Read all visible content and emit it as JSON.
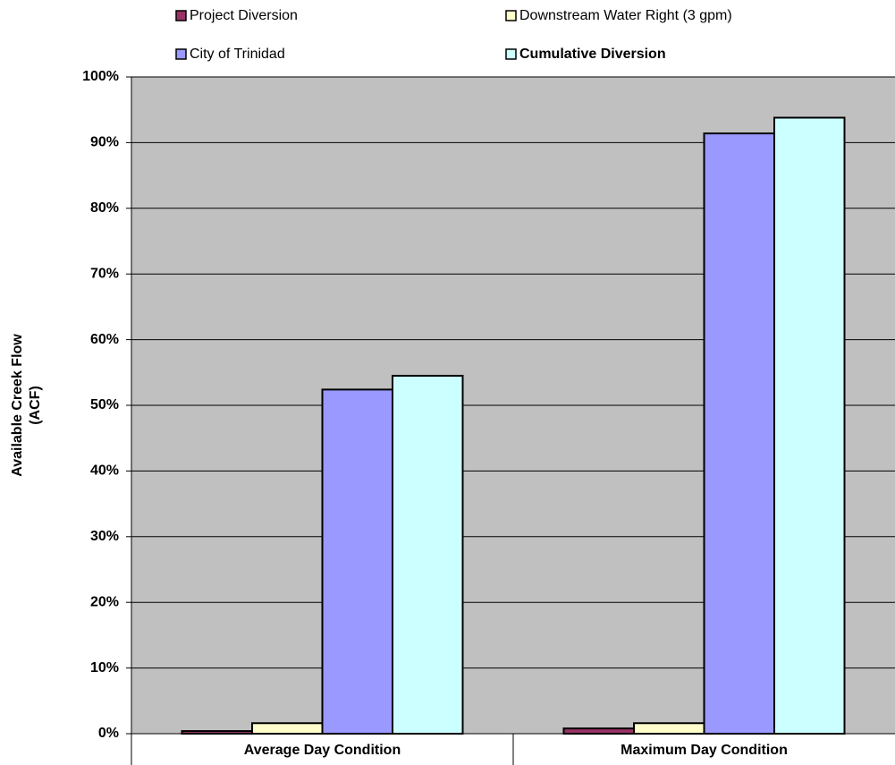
{
  "chart_data": {
    "type": "bar",
    "ylabel": [
      "Available Creek Flow",
      "(ACF)"
    ],
    "categories": [
      "Average Day Condition",
      "Maximum Day Condition"
    ],
    "series": [
      {
        "name": "Project Diversion",
        "color": "#993366",
        "values": [
          0.4,
          0.8
        ]
      },
      {
        "name": "Downstream Water Right (3 gpm)",
        "color": "#ffffcc",
        "values": [
          1.6,
          1.6
        ]
      },
      {
        "name": "City of Trinidad",
        "color": "#9999ff",
        "values": [
          52.4,
          91.4
        ]
      },
      {
        "name": "Cumulative Diversion",
        "color": "#ccffff",
        "values": [
          54.5,
          93.8
        ]
      }
    ],
    "ylim": [
      0,
      100
    ],
    "yticks": [
      {
        "value": 0,
        "label": "0%"
      },
      {
        "value": 10,
        "label": "10%"
      },
      {
        "value": 20,
        "label": "20%"
      },
      {
        "value": 30,
        "label": "30%"
      },
      {
        "value": 40,
        "label": "40%"
      },
      {
        "value": 50,
        "label": "50%"
      },
      {
        "value": 60,
        "label": "60%"
      },
      {
        "value": 70,
        "label": "70%"
      },
      {
        "value": 80,
        "label": "80%"
      },
      {
        "value": 90,
        "label": "90%"
      },
      {
        "value": 100,
        "label": "100%"
      }
    ],
    "grid": true,
    "plot_background": "#c0c0c0"
  }
}
